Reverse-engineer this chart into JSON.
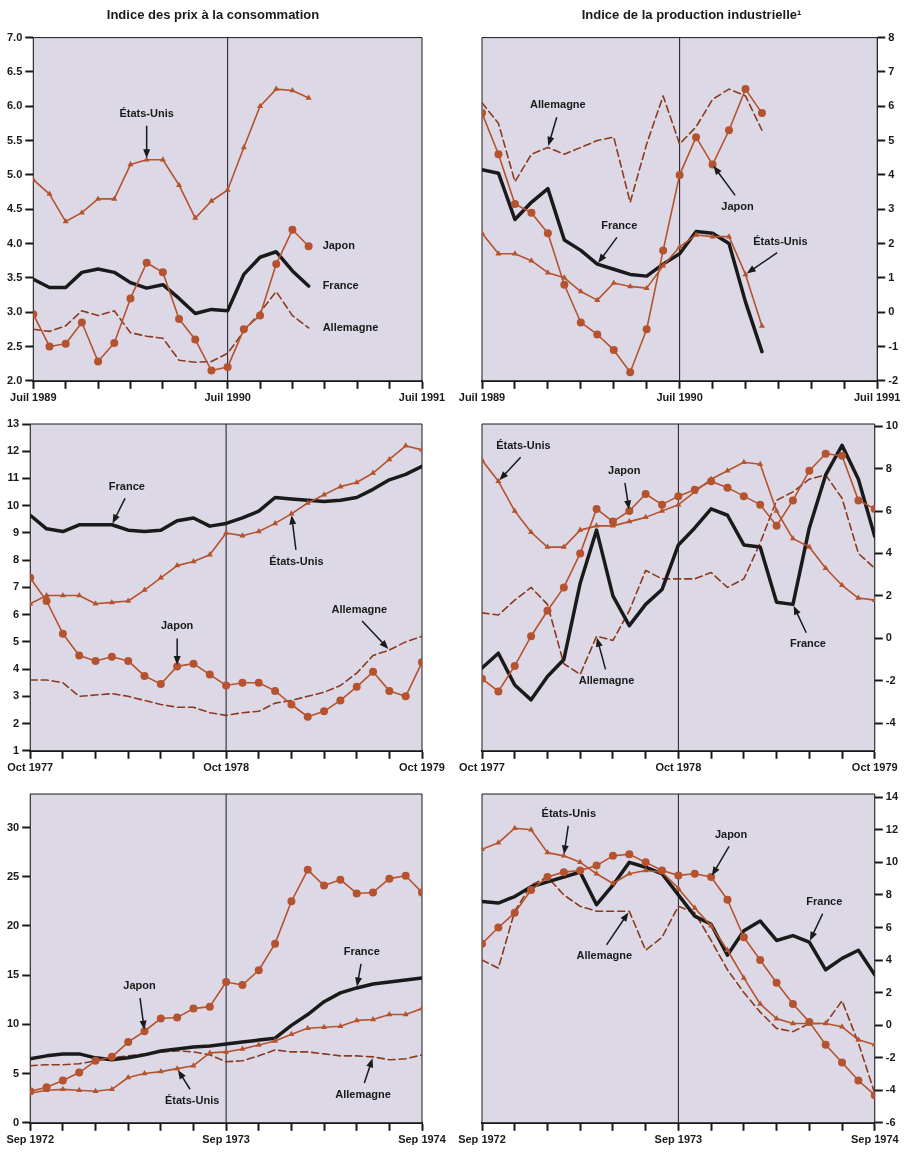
{
  "chart_data": [
    {
      "type": "line",
      "title": "Indice des prix à la consommation",
      "x": [
        "1989-07",
        "1989-08",
        "1989-09",
        "1989-10",
        "1989-11",
        "1989-12",
        "1990-01",
        "1990-02",
        "1990-03",
        "1990-04",
        "1990-05",
        "1990-06",
        "1990-07",
        "1990-08",
        "1990-09",
        "1990-10",
        "1990-11",
        "1990-12"
      ],
      "xlim": [
        "1989-07",
        "1991-07"
      ],
      "xticks": [
        {
          "value": "1989-07",
          "label": "Juil 1989"
        },
        {
          "value": "1989-09",
          "label": null
        },
        {
          "value": "1989-11",
          "label": null
        },
        {
          "value": "1990-01",
          "label": null
        },
        {
          "value": "1990-03",
          "label": null
        },
        {
          "value": "1990-05",
          "label": null
        },
        {
          "value": "1990-07",
          "label": "Juil 1990"
        },
        {
          "value": "1990-09",
          "label": null
        },
        {
          "value": "1990-11",
          "label": null
        },
        {
          "value": "1991-01",
          "label": null
        },
        {
          "value": "1991-03",
          "label": null
        },
        {
          "value": "1991-05",
          "label": null
        },
        {
          "value": "1991-07",
          "label": "Juil 1991"
        }
      ],
      "ylim": [
        2,
        7
      ],
      "yticks": [
        {
          "value": 2,
          "label": "2.0"
        },
        {
          "value": 2.5,
          "label": "2.5"
        },
        {
          "value": 3,
          "label": "3.0"
        },
        {
          "value": 3.5,
          "label": "3.5"
        },
        {
          "value": 4,
          "label": "4.0"
        },
        {
          "value": 4.5,
          "label": "4.5"
        },
        {
          "value": 5,
          "label": "5.0"
        },
        {
          "value": 5.5,
          "label": "5.5"
        },
        {
          "value": 6,
          "label": "6.0"
        },
        {
          "value": 6.5,
          "label": "6.5"
        },
        {
          "value": 7,
          "label": "7.0"
        }
      ],
      "series": [
        {
          "color": "#b5532f",
          "marker": "triangle",
          "line_style": "solid",
          "values": [
            4.93,
            4.72,
            4.32,
            4.45,
            4.65,
            4.65,
            5.15,
            5.22,
            5.22,
            4.85,
            4.37,
            4.62,
            4.78,
            5.4,
            6.0,
            6.25,
            6.23,
            6.12
          ]
        },
        {
          "color": "#b5532f",
          "marker": "circle",
          "line_style": "solid",
          "values": [
            2.97,
            2.5,
            2.54,
            2.85,
            2.28,
            2.55,
            3.2,
            3.72,
            3.58,
            2.9,
            2.6,
            2.15,
            2.2,
            2.75,
            2.95,
            3.7,
            4.2,
            3.96
          ]
        },
        {
          "color": "#1a1a1a",
          "marker": "none",
          "line_style": "solid",
          "values": [
            3.48,
            3.36,
            3.36,
            3.58,
            3.63,
            3.58,
            3.43,
            3.35,
            3.4,
            3.2,
            2.98,
            3.04,
            3.02,
            3.55,
            3.8,
            3.88,
            3.6,
            3.38
          ]
        },
        {
          "color": "#8b3a1e",
          "marker": "none",
          "line_style": "dashed",
          "values": [
            2.75,
            2.72,
            2.8,
            3.02,
            2.95,
            3.02,
            2.7,
            2.65,
            2.62,
            2.3,
            2.27,
            2.28,
            2.4,
            2.72,
            3.0,
            3.3,
            2.95,
            2.77
          ]
        }
      ],
      "ref_lines": [
        {
          "axis": "x",
          "value": "1990-07",
          "color": "#1a1a1a"
        }
      ],
      "annotations": [
        {
          "text": "États-Unis",
          "x": "1990-02",
          "y": 5.22
        },
        {
          "text": "Japon",
          "x": "1990-12",
          "y": 3.96
        },
        {
          "text": "France",
          "x": "1990-12",
          "y": 3.38
        },
        {
          "text": "Allemagne",
          "x": "1990-12",
          "y": 2.77
        }
      ]
    },
    {
      "type": "line",
      "title": "Indice de la production industrielle¹",
      "x": [
        "1989-07",
        "1989-08",
        "1989-09",
        "1989-10",
        "1989-11",
        "1989-12",
        "1990-01",
        "1990-02",
        "1990-03",
        "1990-04",
        "1990-05",
        "1990-06",
        "1990-07",
        "1990-08",
        "1990-09",
        "1990-10",
        "1990-11",
        "1990-12"
      ],
      "xlim": [
        "1989-07",
        "1991-07"
      ],
      "xticks": [
        {
          "value": "1989-07",
          "label": "Juil 1989"
        },
        {
          "value": "1989-09",
          "label": null
        },
        {
          "value": "1989-11",
          "label": null
        },
        {
          "value": "1990-01",
          "label": null
        },
        {
          "value": "1990-03",
          "label": null
        },
        {
          "value": "1990-05",
          "label": null
        },
        {
          "value": "1990-07",
          "label": "Juil 1990"
        },
        {
          "value": "1990-09",
          "label": null
        },
        {
          "value": "1990-11",
          "label": null
        },
        {
          "value": "1991-01",
          "label": null
        },
        {
          "value": "1991-03",
          "label": null
        },
        {
          "value": "1991-05",
          "label": null
        },
        {
          "value": "1991-07",
          "label": "Juil 1991"
        }
      ],
      "ylim": [
        -2,
        8
      ],
      "yticks": [
        -2,
        -1,
        0,
        1,
        2,
        3,
        4,
        5,
        6,
        7,
        8
      ],
      "series": [
        {
          "color": "#b5532f",
          "marker": "triangle",
          "line_style": "solid",
          "values": [
            2.3,
            1.7,
            1.7,
            1.5,
            1.15,
            1.0,
            0.6,
            0.35,
            0.85,
            0.75,
            0.7,
            1.35,
            1.9,
            2.25,
            2.2,
            2.2,
            1.1,
            -0.4
          ]
        },
        {
          "color": "#b5532f",
          "marker": "circle",
          "line_style": "solid",
          "values": [
            5.8,
            4.6,
            3.15,
            2.9,
            2.3,
            0.8,
            -0.3,
            -0.65,
            -1.1,
            -1.75,
            -0.5,
            1.8,
            4.0,
            5.1,
            4.3,
            5.3,
            6.5,
            5.8
          ]
        },
        {
          "color": "#1a1a1a",
          "marker": "none",
          "line_style": "solid",
          "values": [
            4.15,
            4.05,
            2.7,
            3.2,
            3.6,
            2.1,
            1.8,
            1.4,
            1.25,
            1.1,
            1.05,
            1.4,
            1.7,
            2.35,
            2.3,
            2.0,
            0.3,
            -1.15
          ]
        },
        {
          "color": "#8b3a1e",
          "marker": "none",
          "line_style": "dashed",
          "values": [
            6.1,
            5.5,
            3.8,
            4.6,
            4.8,
            4.6,
            4.8,
            5.0,
            5.1,
            3.2,
            4.9,
            6.3,
            4.9,
            5.4,
            6.2,
            6.5,
            6.3,
            5.3
          ]
        }
      ],
      "ref_lines": [
        {
          "axis": "x",
          "value": "1990-07",
          "color": "#1a1a1a"
        }
      ],
      "annotations": [
        {
          "text": "Allemagne",
          "x": "1989-11",
          "y": 4.8
        },
        {
          "text": "France",
          "x": "1990-02",
          "y": 1.4
        },
        {
          "text": "Japon",
          "x": "1990-09",
          "y": 4.3
        },
        {
          "text": "États-Unis",
          "x": "1990-11",
          "y": 1.1
        }
      ]
    },
    {
      "type": "line",
      "x": [
        "1977-10",
        "1977-11",
        "1977-12",
        "1978-01",
        "1978-02",
        "1978-03",
        "1978-04",
        "1978-05",
        "1978-06",
        "1978-07",
        "1978-08",
        "1978-09",
        "1978-10",
        "1978-11",
        "1978-12",
        "1979-01",
        "1979-02",
        "1979-03",
        "1979-04",
        "1979-05",
        "1979-06",
        "1979-07",
        "1979-08",
        "1979-09",
        "1979-10"
      ],
      "xlim": [
        "1977-10",
        "1979-10"
      ],
      "xticks": [
        {
          "value": "1977-10",
          "label": "Oct 1977"
        },
        {
          "value": "1977-12",
          "label": null
        },
        {
          "value": "1978-02",
          "label": null
        },
        {
          "value": "1978-04",
          "label": null
        },
        {
          "value": "1978-06",
          "label": null
        },
        {
          "value": "1978-08",
          "label": null
        },
        {
          "value": "1978-10",
          "label": "Oct 1978"
        },
        {
          "value": "1978-12",
          "label": null
        },
        {
          "value": "1979-02",
          "label": null
        },
        {
          "value": "1979-04",
          "label": null
        },
        {
          "value": "1979-06",
          "label": null
        },
        {
          "value": "1979-08",
          "label": null
        },
        {
          "value": "1979-10",
          "label": "Oct 1979"
        }
      ],
      "ylim": [
        1,
        13
      ],
      "yticks": [
        1,
        2,
        3,
        4,
        5,
        6,
        7,
        8,
        9,
        10,
        11,
        12,
        13
      ],
      "series": [
        {
          "color": "#b5532f",
          "marker": "triangle",
          "line_style": "solid",
          "values": [
            6.4,
            6.7,
            6.7,
            6.7,
            6.4,
            6.45,
            6.5,
            6.9,
            7.35,
            7.8,
            7.95,
            8.2,
            9.0,
            8.9,
            9.05,
            9.35,
            9.7,
            10.1,
            10.4,
            10.7,
            10.85,
            11.2,
            11.7,
            12.2,
            12.05
          ]
        },
        {
          "color": "#b5532f",
          "marker": "circle",
          "line_style": "solid",
          "values": [
            7.35,
            6.5,
            5.3,
            4.5,
            4.3,
            4.45,
            4.3,
            3.75,
            3.45,
            4.1,
            4.2,
            3.8,
            3.4,
            3.5,
            3.5,
            3.2,
            2.7,
            2.25,
            2.45,
            2.85,
            3.35,
            3.9,
            3.2,
            3.0,
            4.25
          ]
        },
        {
          "color": "#1a1a1a",
          "marker": "none",
          "line_style": "solid",
          "values": [
            9.65,
            9.15,
            9.05,
            9.3,
            9.3,
            9.3,
            9.1,
            9.05,
            9.1,
            9.45,
            9.55,
            9.25,
            9.35,
            9.55,
            9.8,
            10.3,
            10.25,
            10.2,
            10.15,
            10.2,
            10.3,
            10.6,
            10.95,
            11.15,
            11.45
          ]
        },
        {
          "color": "#8b3a1e",
          "marker": "none",
          "line_style": "dashed",
          "values": [
            3.6,
            3.6,
            3.5,
            3.0,
            3.05,
            3.1,
            3.0,
            2.85,
            2.7,
            2.6,
            2.6,
            2.4,
            2.3,
            2.4,
            2.45,
            2.75,
            2.85,
            3.0,
            3.15,
            3.4,
            3.85,
            4.5,
            4.7,
            5.0,
            5.2
          ]
        }
      ],
      "ref_lines": [
        {
          "axis": "x",
          "value": "1978-10",
          "color": "#1a1a1a"
        }
      ],
      "annotations": [
        {
          "text": "France",
          "x": "1978-03",
          "y": 9.3
        },
        {
          "text": "États-Unis",
          "x": "1979-02",
          "y": 9.7
        },
        {
          "text": "Japon",
          "x": "1978-07",
          "y": 4.1
        },
        {
          "text": "Allemagne",
          "x": "1979-08",
          "y": 4.7
        }
      ]
    },
    {
      "type": "line",
      "x": [
        "1977-10",
        "1977-11",
        "1977-12",
        "1978-01",
        "1978-02",
        "1978-03",
        "1978-04",
        "1978-05",
        "1978-06",
        "1978-07",
        "1978-08",
        "1978-09",
        "1978-10",
        "1978-11",
        "1978-12",
        "1979-01",
        "1979-02",
        "1979-03",
        "1979-04",
        "1979-05",
        "1979-06",
        "1979-07",
        "1979-08",
        "1979-09",
        "1979-10"
      ],
      "xlim": [
        "1977-10",
        "1979-10"
      ],
      "xticks": [
        {
          "value": "1977-10",
          "label": "Oct 1977"
        },
        {
          "value": "1977-12",
          "label": null
        },
        {
          "value": "1978-02",
          "label": null
        },
        {
          "value": "1978-04",
          "label": null
        },
        {
          "value": "1978-06",
          "label": null
        },
        {
          "value": "1978-08",
          "label": null
        },
        {
          "value": "1978-10",
          "label": "Oct 1978"
        },
        {
          "value": "1978-12",
          "label": null
        },
        {
          "value": "1979-02",
          "label": null
        },
        {
          "value": "1979-04",
          "label": null
        },
        {
          "value": "1979-06",
          "label": null
        },
        {
          "value": "1979-08",
          "label": null
        },
        {
          "value": "1979-10",
          "label": "Oct 1979"
        }
      ],
      "ylim": [
        -5.3,
        10.1
      ],
      "yticks": [
        -4,
        -2,
        0,
        2,
        4,
        6,
        8,
        10
      ],
      "series": [
        {
          "color": "#b5532f",
          "marker": "triangle",
          "line_style": "solid",
          "values": [
            8.4,
            7.4,
            6.0,
            5.0,
            4.3,
            4.3,
            5.1,
            5.3,
            5.3,
            5.5,
            5.7,
            6.0,
            6.3,
            6.9,
            7.5,
            7.9,
            8.3,
            8.2,
            6.0,
            4.7,
            4.3,
            3.3,
            2.5,
            1.9,
            1.8
          ]
        },
        {
          "color": "#b5532f",
          "marker": "circle",
          "line_style": "solid",
          "values": [
            -1.9,
            -2.5,
            -1.3,
            0.1,
            1.3,
            2.4,
            4.0,
            6.1,
            5.5,
            6.0,
            6.8,
            6.3,
            6.7,
            7.0,
            7.4,
            7.1,
            6.7,
            6.3,
            5.3,
            6.5,
            7.9,
            8.7,
            8.6,
            6.5,
            6.1
          ]
        },
        {
          "color": "#1a1a1a",
          "marker": "none",
          "line_style": "solid",
          "values": [
            -1.4,
            -0.7,
            -2.2,
            -2.9,
            -1.8,
            -1.0,
            2.6,
            5.1,
            2.0,
            0.6,
            1.6,
            2.3,
            4.4,
            5.2,
            6.1,
            5.8,
            4.4,
            4.3,
            1.7,
            1.6,
            5.2,
            7.7,
            9.1,
            7.5,
            4.8
          ]
        },
        {
          "color": "#8b3a1e",
          "marker": "none",
          "line_style": "dashed",
          "values": [
            1.2,
            1.1,
            1.8,
            2.4,
            1.6,
            -1.2,
            -1.7,
            0.1,
            -0.1,
            1.3,
            3.2,
            2.8,
            2.8,
            2.8,
            3.1,
            2.4,
            2.8,
            4.5,
            6.5,
            6.9,
            7.5,
            7.7,
            6.6,
            4.0,
            3.3
          ]
        }
      ],
      "ref_lines": [
        {
          "axis": "x",
          "value": "1978-10",
          "color": "#1a1a1a"
        }
      ],
      "annotations": [
        {
          "text": "États-Unis",
          "x": "1977-11",
          "y": 7.4
        },
        {
          "text": "Japon",
          "x": "1978-07",
          "y": 6.0
        },
        {
          "text": "Allemagne",
          "x": "1978-05",
          "y": 0.1
        },
        {
          "text": "France",
          "x": "1979-05",
          "y": 1.6
        }
      ]
    },
    {
      "type": "line",
      "x": [
        "1972-09",
        "1972-10",
        "1972-11",
        "1972-12",
        "1973-01",
        "1973-02",
        "1973-03",
        "1973-04",
        "1973-05",
        "1973-06",
        "1973-07",
        "1973-08",
        "1973-09",
        "1973-10",
        "1973-11",
        "1973-12",
        "1974-01",
        "1974-02",
        "1974-03",
        "1974-04",
        "1974-05",
        "1974-06",
        "1974-07",
        "1974-08",
        "1974-09"
      ],
      "xlim": [
        "1972-09",
        "1974-09"
      ],
      "xticks": [
        {
          "value": "1972-09",
          "label": "Sep 1972"
        },
        {
          "value": "1972-11",
          "label": null
        },
        {
          "value": "1973-01",
          "label": null
        },
        {
          "value": "1973-03",
          "label": null
        },
        {
          "value": "1973-05",
          "label": null
        },
        {
          "value": "1973-07",
          "label": null
        },
        {
          "value": "1973-09",
          "label": "Sep 1973"
        },
        {
          "value": "1973-11",
          "label": null
        },
        {
          "value": "1974-01",
          "label": null
        },
        {
          "value": "1974-03",
          "label": null
        },
        {
          "value": "1974-05",
          "label": null
        },
        {
          "value": "1974-07",
          "label": null
        },
        {
          "value": "1974-09",
          "label": "Sep 1974"
        }
      ],
      "ylim": [
        0,
        33.4
      ],
      "yticks": [
        0,
        5,
        10,
        15,
        20,
        25,
        30
      ],
      "series": [
        {
          "color": "#b5532f",
          "marker": "triangle",
          "line_style": "solid",
          "values": [
            3.0,
            3.3,
            3.4,
            3.3,
            3.2,
            3.4,
            4.6,
            5.0,
            5.2,
            5.5,
            5.8,
            7.1,
            7.2,
            7.5,
            7.9,
            8.3,
            9.0,
            9.6,
            9.7,
            9.8,
            10.4,
            10.5,
            11.0,
            11.0,
            11.6
          ]
        },
        {
          "color": "#b5532f",
          "marker": "circle",
          "line_style": "solid",
          "values": [
            3.2,
            3.6,
            4.3,
            5.1,
            6.3,
            6.7,
            8.2,
            9.3,
            10.6,
            10.7,
            11.6,
            11.8,
            14.3,
            14.0,
            15.5,
            18.2,
            22.5,
            25.7,
            24.1,
            24.7,
            23.3,
            23.4,
            24.8,
            25.1,
            23.4
          ]
        },
        {
          "color": "#1a1a1a",
          "marker": "none",
          "line_style": "solid",
          "values": [
            6.5,
            6.8,
            7.0,
            7.0,
            6.6,
            6.4,
            6.6,
            6.9,
            7.3,
            7.5,
            7.7,
            7.8,
            8.0,
            8.2,
            8.4,
            8.6,
            9.9,
            11.0,
            12.3,
            13.2,
            13.7,
            14.1,
            14.3,
            14.5,
            14.7
          ]
        },
        {
          "color": "#8b3a1e",
          "marker": "none",
          "line_style": "dashed",
          "values": [
            5.8,
            5.9,
            5.9,
            6.0,
            6.3,
            6.6,
            6.8,
            7.0,
            7.2,
            7.3,
            7.2,
            6.9,
            6.2,
            6.3,
            6.8,
            7.4,
            7.2,
            7.2,
            7.0,
            6.8,
            6.8,
            6.7,
            6.4,
            6.5,
            6.9
          ]
        }
      ],
      "ref_lines": [
        {
          "axis": "x",
          "value": "1973-09",
          "color": "#1a1a1a"
        }
      ],
      "annotations": [
        {
          "text": "Japon",
          "x": "1973-04",
          "y": 9.3
        },
        {
          "text": "France",
          "x": "1974-05",
          "y": 13.7
        },
        {
          "text": "États-Unis",
          "x": "1973-06",
          "y": 5.5
        },
        {
          "text": "Allemagne",
          "x": "1974-06",
          "y": 6.7
        }
      ]
    },
    {
      "type": "line",
      "x": [
        "1972-09",
        "1972-10",
        "1972-11",
        "1972-12",
        "1973-01",
        "1973-02",
        "1973-03",
        "1973-04",
        "1973-05",
        "1973-06",
        "1973-07",
        "1973-08",
        "1973-09",
        "1973-10",
        "1973-11",
        "1973-12",
        "1974-01",
        "1974-02",
        "1974-03",
        "1974-04",
        "1974-05",
        "1974-06",
        "1974-07",
        "1974-08",
        "1974-09"
      ],
      "xlim": [
        "1972-09",
        "1974-09"
      ],
      "xticks": [
        {
          "value": "1972-09",
          "label": "Sep 1972"
        },
        {
          "value": "1972-11",
          "label": null
        },
        {
          "value": "1973-01",
          "label": null
        },
        {
          "value": "1973-03",
          "label": null
        },
        {
          "value": "1973-05",
          "label": null
        },
        {
          "value": "1973-07",
          "label": null
        },
        {
          "value": "1973-09",
          "label": "Sep 1973"
        },
        {
          "value": "1973-11",
          "label": null
        },
        {
          "value": "1974-01",
          "label": null
        },
        {
          "value": "1974-03",
          "label": null
        },
        {
          "value": "1974-05",
          "label": null
        },
        {
          "value": "1974-07",
          "label": null
        },
        {
          "value": "1974-09",
          "label": "Sep 1974"
        }
      ],
      "ylim": [
        -6,
        14.2
      ],
      "yticks": [
        -6,
        -4,
        -2,
        0,
        2,
        4,
        6,
        8,
        10,
        12,
        14
      ],
      "series": [
        {
          "color": "#b5532f",
          "marker": "triangle",
          "line_style": "solid",
          "values": [
            10.8,
            11.2,
            12.1,
            12.0,
            10.6,
            10.4,
            10.0,
            9.3,
            8.7,
            9.3,
            9.5,
            9.4,
            8.4,
            7.2,
            6.1,
            4.6,
            2.9,
            1.3,
            0.4,
            0.1,
            0.1,
            0.1,
            -0.1,
            -0.9,
            -1.2
          ]
        },
        {
          "color": "#b5532f",
          "marker": "circle",
          "line_style": "solid",
          "values": [
            5.0,
            6.0,
            6.9,
            8.3,
            9.1,
            9.4,
            9.5,
            9.8,
            10.4,
            10.5,
            10.0,
            9.5,
            9.2,
            9.3,
            9.1,
            7.7,
            5.4,
            4.0,
            2.6,
            1.3,
            0.2,
            -1.2,
            -2.3,
            -3.4,
            -4.3
          ]
        },
        {
          "color": "#1a1a1a",
          "marker": "none",
          "line_style": "solid",
          "values": [
            7.6,
            7.5,
            7.9,
            8.5,
            8.8,
            9.1,
            9.4,
            7.4,
            8.6,
            10.0,
            9.7,
            9.3,
            8.0,
            6.7,
            6.2,
            4.3,
            5.8,
            6.4,
            5.2,
            5.5,
            5.1,
            3.4,
            4.1,
            4.6,
            3.1
          ]
        },
        {
          "color": "#8b3a1e",
          "marker": "none",
          "line_style": "dashed",
          "values": [
            4.0,
            3.5,
            7.0,
            8.6,
            9.1,
            8.0,
            7.3,
            7.0,
            7.0,
            7.0,
            4.6,
            5.4,
            7.3,
            6.9,
            5.2,
            3.4,
            2.0,
            0.8,
            -0.2,
            -0.4,
            0.1,
            0.1,
            1.5,
            -1.1,
            -4.2
          ]
        }
      ],
      "ref_lines": [
        {
          "axis": "x",
          "value": "1973-09",
          "color": "#1a1a1a"
        }
      ],
      "annotations": [
        {
          "text": "États-Unis",
          "x": "1973-02",
          "y": 10.4
        },
        {
          "text": "Japon",
          "x": "1973-11",
          "y": 9.1
        },
        {
          "text": "France",
          "x": "1974-05",
          "y": 5.1
        },
        {
          "text": "Allemagne",
          "x": "1973-06",
          "y": 7.0
        }
      ]
    }
  ]
}
